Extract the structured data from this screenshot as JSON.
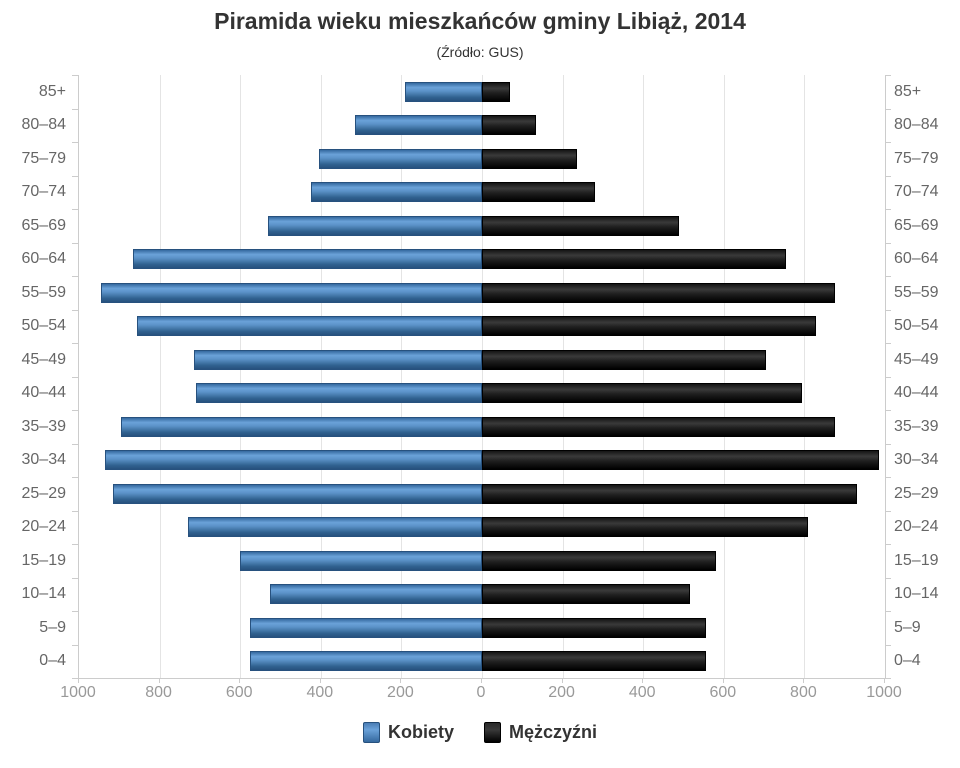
{
  "title": "Piramida wieku mieszkańców gminy Libiąż, 2014",
  "subtitle": "(Źródło: GUS)",
  "legend": {
    "women": "Kobiety",
    "men": "Mężczyźni"
  },
  "colors": {
    "women_bar": "#4a7db5",
    "men_bar": "#111111",
    "grid": "#e4e4e4",
    "axis_line": "#cccccc",
    "category_label": "#666666",
    "axis_label": "#999999",
    "title_text": "#333333"
  },
  "axis": {
    "tick_values": [
      -1000,
      -800,
      -600,
      -400,
      -200,
      0,
      200,
      400,
      600,
      800,
      1000
    ],
    "tick_labels": [
      "1000",
      "800",
      "600",
      "400",
      "200",
      "0",
      "200",
      "400",
      "600",
      "800",
      "1000"
    ],
    "max_per_side": 1000,
    "step": 200
  },
  "chart_data": {
    "type": "bar",
    "variant": "population-pyramid",
    "title": "Piramida wieku mieszkańców gminy Libiąż, 2014",
    "subtitle": "(Źródło: GUS)",
    "categories": [
      "85+",
      "80–84",
      "75–79",
      "70–74",
      "65–69",
      "60–64",
      "55–59",
      "50–54",
      "45–49",
      "40–44",
      "35–39",
      "30–34",
      "25–29",
      "20–24",
      "15–19",
      "10–14",
      "5–9",
      "0–4"
    ],
    "series": [
      {
        "name": "Kobiety",
        "side": "left",
        "values": [
          190,
          315,
          405,
          425,
          530,
          865,
          945,
          855,
          715,
          710,
          895,
          935,
          915,
          730,
          600,
          525,
          575,
          575
        ]
      },
      {
        "name": "Mężczyźni",
        "side": "right",
        "values": [
          70,
          135,
          235,
          280,
          490,
          755,
          875,
          830,
          705,
          795,
          875,
          985,
          930,
          810,
          580,
          515,
          555,
          555
        ]
      }
    ],
    "xlim": [
      -1000,
      1000
    ],
    "grid": true,
    "legend_position": "bottom"
  }
}
